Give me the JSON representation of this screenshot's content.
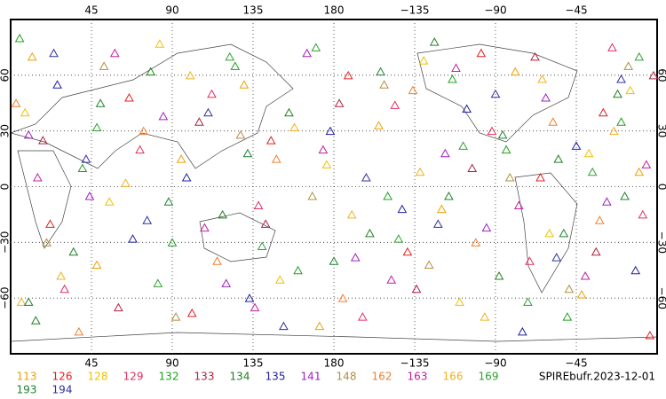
{
  "chart_data": {
    "type": "scatter",
    "label": "SPIREbufr.2023-12-01",
    "xlim": [
      0,
      360
    ],
    "ylim": [
      -90,
      90
    ],
    "xticks": [
      45,
      90,
      135,
      180,
      {
        "value": 225,
        "label": "−135"
      },
      {
        "value": 270,
        "label": "−90"
      },
      {
        "value": 315,
        "label": "−45"
      }
    ],
    "yticks": [
      {
        "value": -60,
        "label": "−60"
      },
      {
        "value": -30,
        "label": "−30"
      },
      0,
      30,
      60
    ],
    "grid": true,
    "series": [
      {
        "name": "113",
        "color": "#f0a000",
        "x": [
          12,
          48,
          95,
          130,
          172,
          205,
          240,
          281,
          318,
          350
        ],
        "values": [
          70,
          -42,
          15,
          55,
          -75,
          33,
          -12,
          62,
          -58,
          8
        ]
      },
      {
        "name": "126",
        "color": "#e02020",
        "x": [
          22,
          66,
          101,
          145,
          188,
          221,
          262,
          295,
          330,
          356
        ],
        "values": [
          -20,
          48,
          -68,
          25,
          60,
          -35,
          72,
          5,
          40,
          -80
        ]
      },
      {
        "name": "128",
        "color": "#f0c000",
        "x": [
          8,
          55,
          83,
          150,
          176,
          230,
          250,
          300,
          322,
          345
        ],
        "values": [
          40,
          -8,
          77,
          -50,
          12,
          68,
          -62,
          -25,
          18,
          52
        ]
      },
      {
        "name": "129",
        "color": "#e03060",
        "x": [
          30,
          72,
          112,
          138,
          196,
          214,
          268,
          289,
          335,
          352
        ],
        "values": [
          -55,
          20,
          50,
          -10,
          -70,
          44,
          30,
          -40,
          75,
          -15
        ]
      },
      {
        "name": "132",
        "color": "#20a020",
        "x": [
          5,
          40,
          90,
          125,
          160,
          210,
          246,
          276,
          310,
          340
        ],
        "values": [
          80,
          10,
          -30,
          65,
          -45,
          -5,
          58,
          20,
          -70,
          35
        ]
      },
      {
        "name": "133",
        "color": "#b02040",
        "x": [
          18,
          60,
          105,
          142,
          183,
          226,
          257,
          292,
          326,
          358
        ],
        "values": [
          25,
          -65,
          35,
          -20,
          45,
          -55,
          10,
          70,
          -35,
          60
        ]
      },
      {
        "name": "134",
        "color": "#208020",
        "x": [
          35,
          78,
          118,
          155,
          200,
          236,
          272,
          305,
          338,
          14
        ],
        "values": [
          -35,
          62,
          -15,
          40,
          -25,
          78,
          -48,
          15,
          50,
          -72
        ]
      },
      {
        "name": "135",
        "color": "#2020a0",
        "x": [
          26,
          68,
          98,
          133,
          178,
          218,
          254,
          285,
          315,
          348
        ],
        "values": [
          55,
          -28,
          5,
          -60,
          30,
          -12,
          42,
          -78,
          22,
          -45
        ]
      },
      {
        "name": "141",
        "color": "#a020c0",
        "x": [
          44,
          85,
          120,
          165,
          192,
          242,
          265,
          298,
          332,
          10
        ],
        "values": [
          -5,
          38,
          -52,
          72,
          -38,
          18,
          -22,
          48,
          -8,
          28
        ]
      },
      {
        "name": "148",
        "color": "#b09040",
        "x": [
          52,
          92,
          128,
          168,
          208,
          233,
          278,
          311,
          344,
          20
        ],
        "values": [
          65,
          -70,
          28,
          -5,
          55,
          -42,
          5,
          -55,
          65,
          -30
        ]
      },
      {
        "name": "162",
        "color": "#f08030",
        "x": [
          38,
          74,
          115,
          148,
          185,
          224,
          259,
          302,
          328,
          3
        ],
        "values": [
          -78,
          30,
          -40,
          15,
          -60,
          52,
          -30,
          35,
          -18,
          45
        ]
      },
      {
        "name": "163",
        "color": "#c020a0",
        "x": [
          15,
          58,
          108,
          136,
          174,
          212,
          248,
          283,
          320,
          354
        ],
        "values": [
          5,
          72,
          -22,
          -65,
          20,
          -50,
          64,
          -10,
          -48,
          12
        ]
      },
      {
        "name": "166",
        "color": "#f0b020",
        "x": [
          28,
          64,
          100,
          158,
          190,
          228,
          264,
          296,
          336,
          6
        ],
        "values": [
          -48,
          2,
          60,
          32,
          -15,
          8,
          -70,
          58,
          30,
          -62
        ]
      },
      {
        "name": "169",
        "color": "#30a030",
        "x": [
          48,
          82,
          122,
          140,
          170,
          216,
          252,
          288,
          324,
          350
        ],
        "values": [
          32,
          -52,
          70,
          -32,
          75,
          -28,
          22,
          -62,
          8,
          70
        ]
      },
      {
        "name": "193",
        "color": "#208030",
        "x": [
          10,
          50,
          88,
          132,
          180,
          206,
          244,
          274,
          308,
          342
        ],
        "values": [
          -62,
          45,
          -8,
          18,
          -40,
          62,
          -5,
          28,
          -25,
          -5
        ]
      },
      {
        "name": "194",
        "color": "#3030a0",
        "x": [
          42,
          76,
          110,
          152,
          198,
          238,
          270,
          304,
          340,
          24
        ],
        "values": [
          15,
          -18,
          40,
          -75,
          5,
          -20,
          50,
          -38,
          58,
          72
        ]
      }
    ]
  }
}
